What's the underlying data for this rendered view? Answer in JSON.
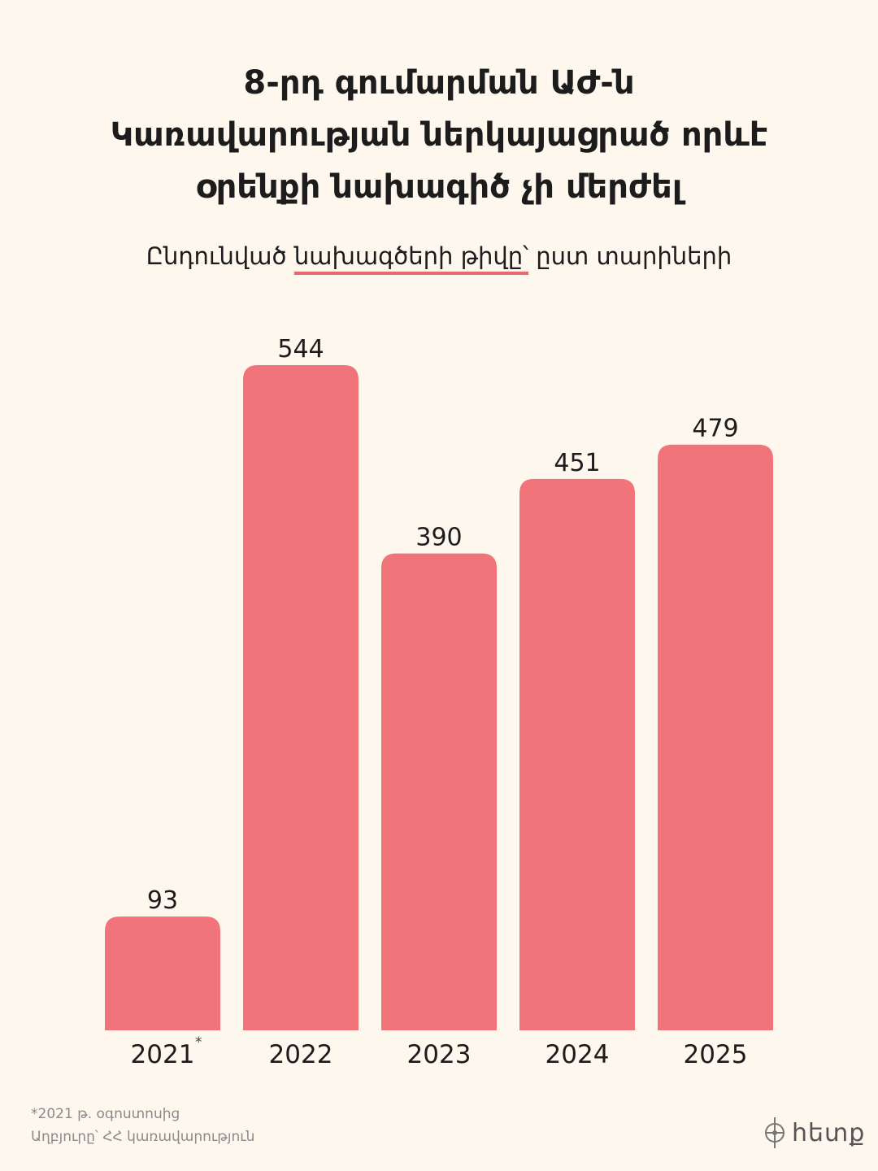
{
  "title": {
    "line1": "8-րդ գումարման ԱԺ-ն",
    "line2": "Կառավարության ներկայացրած որևէ",
    "line3": "օրենքի նախագիծ չի մերժել"
  },
  "subtitle": {
    "before": "Ընդունված ",
    "highlight": "նախագծերի թիվը՝",
    "after": " ըստ տարիների"
  },
  "chart_data": {
    "type": "bar",
    "categories": [
      "2021",
      "2022",
      "2023",
      "2024",
      "2025"
    ],
    "category_marks": [
      "*",
      "",
      "",
      "",
      ""
    ],
    "values": [
      93,
      544,
      390,
      451,
      479
    ],
    "ylim": [
      0,
      544
    ],
    "grid": false,
    "bar_color": "#f07479"
  },
  "footnote": {
    "note": "*2021 թ. օգոստոսից",
    "source": "Աղբյուրը՝ ՀՀ կառավարություն"
  },
  "logo": {
    "text": "հետք",
    "icon": "logo-mark-icon"
  },
  "colors": {
    "background": "#fdf7ee",
    "accent": "#e66a70"
  }
}
